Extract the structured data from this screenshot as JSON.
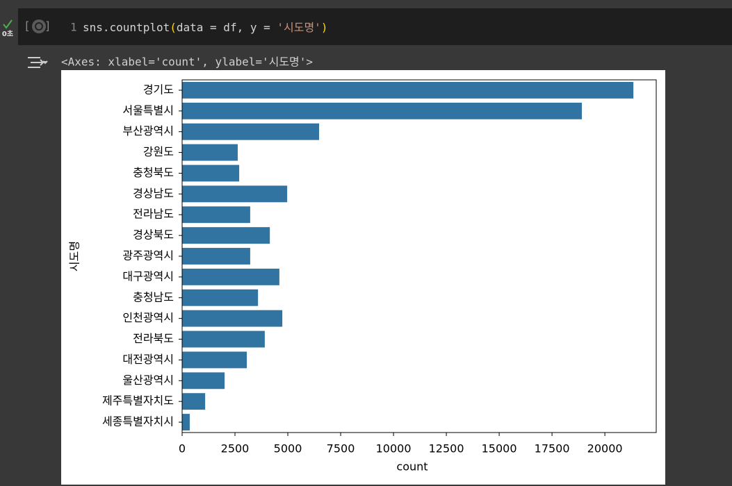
{
  "cell": {
    "exec_time": "0초",
    "bracket_open": "[",
    "bracket_close": "]",
    "line_number": "1",
    "code_tokens": [
      {
        "text": "sns.countplot",
        "color": "#d4d4d4"
      },
      {
        "text": "(",
        "color": "#ffd700"
      },
      {
        "text": "data = df, y = ",
        "color": "#d4d4d4"
      },
      {
        "text": "'시도명'",
        "color": "#ce9178"
      },
      {
        "text": ")",
        "color": "#ffd700"
      }
    ],
    "output_text": "<Axes: xlabel='count', ylabel='시도명'>"
  },
  "chart_data": {
    "type": "barh",
    "xlabel": "count",
    "ylabel": "시도명",
    "color": "#3274a1",
    "categories": [
      "경기도",
      "서울특별시",
      "부산광역시",
      "강원도",
      "충청북도",
      "경상남도",
      "전라남도",
      "경상북도",
      "광주광역시",
      "대구광역시",
      "충청남도",
      "인천광역시",
      "전라북도",
      "대전광역시",
      "울산광역시",
      "제주특별자치도",
      "세종특별자치시"
    ],
    "values": [
      21350,
      18910,
      6480,
      2630,
      2700,
      4970,
      3220,
      4150,
      3220,
      4600,
      3590,
      4740,
      3910,
      3060,
      2010,
      1090,
      360
    ],
    "xlim": [
      0,
      22430
    ],
    "xticks": [
      0,
      2500,
      5000,
      7500,
      10000,
      12500,
      15000,
      17500,
      20000
    ]
  }
}
